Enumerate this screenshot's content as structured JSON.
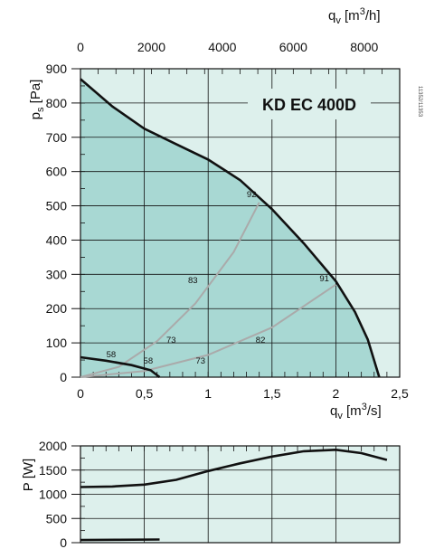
{
  "chart_data": [
    {
      "type": "line",
      "title": "KD EC 400D",
      "xlabel": "q_v [m³/s]",
      "ylabel": "p_s [Pa]",
      "x2label": "q_v [m³/h]",
      "xlim": [
        0,
        2.5
      ],
      "ylim": [
        0,
        900
      ],
      "x2lim": [
        0,
        9000
      ],
      "xticks": [
        "0",
        "0,5",
        "1",
        "1,5",
        "2",
        "2,5"
      ],
      "yticks": [
        "0",
        "100",
        "200",
        "300",
        "400",
        "500",
        "600",
        "700",
        "800",
        "900"
      ],
      "x2ticks": [
        "0",
        "2000",
        "4000",
        "6000",
        "8000"
      ],
      "grid": true,
      "series": [
        {
          "values": [
            [
              0,
              870
            ],
            [
              0.25,
              790
            ],
            [
              0.5,
              725
            ],
            [
              0.75,
              680
            ],
            [
              1.0,
              635
            ],
            [
              1.25,
              575
            ],
            [
              1.5,
              490
            ],
            [
              1.75,
              390
            ],
            [
              2.0,
              280
            ],
            [
              2.15,
              190
            ],
            [
              2.25,
              110
            ],
            [
              2.34,
              0
            ]
          ]
        },
        {
          "values": [
            [
              0,
              58
            ],
            [
              0.2,
              48
            ],
            [
              0.4,
              35
            ],
            [
              0.55,
              20
            ],
            [
              0.62,
              0
            ]
          ]
        },
        {
          "values": [
            [
              0,
              0
            ],
            [
              0.3,
              30
            ],
            [
              0.6,
              105
            ],
            [
              0.9,
              215
            ],
            [
              1.2,
              365
            ],
            [
              1.4,
              510
            ]
          ]
        },
        {
          "values": [
            [
              0,
              0
            ],
            [
              0.5,
              18
            ],
            [
              1.0,
              65
            ],
            [
              1.5,
              145
            ],
            [
              2.0,
              270
            ]
          ]
        }
      ],
      "annotations": [
        {
          "text": "92",
          "x": 1.34,
          "y": 525
        },
        {
          "text": "91",
          "x": 1.91,
          "y": 280
        },
        {
          "text": "83",
          "x": 0.88,
          "y": 275
        },
        {
          "text": "82",
          "x": 1.41,
          "y": 100
        },
        {
          "text": "73",
          "x": 0.71,
          "y": 100
        },
        {
          "text": "73",
          "x": 0.94,
          "y": 40
        },
        {
          "text": "58",
          "x": 0.24,
          "y": 58
        },
        {
          "text": "58",
          "x": 0.53,
          "y": 40
        }
      ],
      "colors": {
        "curve": "#111111",
        "efficiency": "#aaaaaa",
        "fill": "#a8d8d3",
        "background": "#ddf0ec"
      }
    },
    {
      "type": "line",
      "ylabel": "P [W]",
      "xlim": [
        0,
        2.5
      ],
      "ylim": [
        0,
        2000
      ],
      "yticks": [
        "0",
        "500",
        "1000",
        "1500",
        "2000"
      ],
      "grid": true,
      "series": [
        {
          "values": [
            [
              0,
              1150
            ],
            [
              0.25,
              1160
            ],
            [
              0.5,
              1200
            ],
            [
              0.75,
              1300
            ],
            [
              1.0,
              1480
            ],
            [
              1.25,
              1640
            ],
            [
              1.5,
              1780
            ],
            [
              1.75,
              1890
            ],
            [
              2.0,
              1920
            ],
            [
              2.2,
              1850
            ],
            [
              2.4,
              1710
            ]
          ]
        },
        {
          "values": [
            [
              0,
              55
            ],
            [
              0.3,
              60
            ],
            [
              0.62,
              65
            ]
          ]
        }
      ]
    }
  ],
  "reference": "11352/11353"
}
